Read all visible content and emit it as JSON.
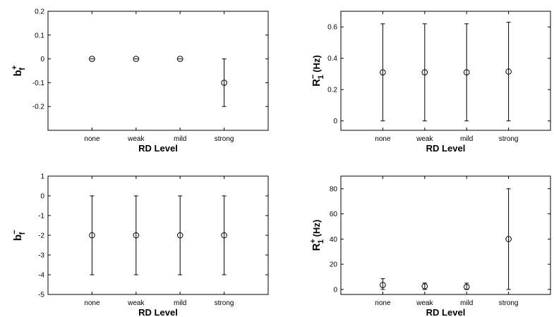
{
  "chart_data": [
    {
      "type": "scatter",
      "title": "",
      "xlabel": "RD Level",
      "ylabel": {
        "base": "b",
        "sup": "+",
        "sub": "f",
        "unit": ""
      },
      "categories": [
        "none",
        "weak",
        "mild",
        "strong"
      ],
      "series": [
        {
          "values": [
            0,
            0,
            0,
            -0.1
          ],
          "err_low": [
            0,
            0,
            0,
            -0.2
          ],
          "err_high": [
            0,
            0,
            0,
            0
          ]
        }
      ],
      "xlim": [
        0,
        5
      ],
      "ylim": [
        -0.3,
        0.2
      ],
      "yticks": [
        0.2,
        0.1,
        0,
        -0.1,
        -0.2
      ],
      "ytick_labels": [
        "0.2",
        "0.1",
        "0",
        "-0.1",
        "-0.2"
      ]
    },
    {
      "type": "scatter",
      "title": "",
      "xlabel": "RD Level",
      "ylabel": {
        "base": "R",
        "sup": "−",
        "sub": "1",
        "unit": " (Hz)"
      },
      "categories": [
        "none",
        "weak",
        "mild",
        "strong"
      ],
      "series": [
        {
          "values": [
            0.31,
            0.31,
            0.31,
            0.315
          ],
          "err_low": [
            0,
            0,
            0,
            0
          ],
          "err_high": [
            0.62,
            0.62,
            0.62,
            0.63
          ]
        }
      ],
      "xlim": [
        0,
        5
      ],
      "ylim": [
        -0.06,
        0.7
      ],
      "yticks": [
        0.6,
        0.4,
        0.2,
        0
      ],
      "ytick_labels": [
        "0.6",
        "0.4",
        "0.2",
        "0"
      ]
    },
    {
      "type": "scatter",
      "title": "",
      "xlabel": "RD Level",
      "ylabel": {
        "base": "b",
        "sup": "−",
        "sub": "f",
        "unit": ""
      },
      "categories": [
        "none",
        "weak",
        "mild",
        "strong"
      ],
      "series": [
        {
          "values": [
            -2,
            -2,
            -2,
            -2
          ],
          "err_low": [
            -4,
            -4,
            -4,
            -4
          ],
          "err_high": [
            0,
            0,
            0,
            0
          ]
        }
      ],
      "xlim": [
        0,
        5
      ],
      "ylim": [
        -5,
        1
      ],
      "yticks": [
        1,
        0,
        -1,
        -2,
        -3,
        -4,
        -5
      ],
      "ytick_labels": [
        "1",
        "0",
        "-1",
        "-2",
        "-3",
        "-4",
        "-5"
      ]
    },
    {
      "type": "scatter",
      "title": "",
      "xlabel": "RD Level",
      "ylabel": {
        "base": "R",
        "sup": "+",
        "sub": "1",
        "unit": " (Hz)"
      },
      "categories": [
        "none",
        "weak",
        "mild",
        "strong"
      ],
      "series": [
        {
          "values": [
            3.5,
            2.5,
            2,
            40
          ],
          "err_low": [
            0,
            0,
            0,
            0
          ],
          "err_high": [
            8.5,
            5,
            5,
            80
          ]
        }
      ],
      "xlim": [
        0,
        5
      ],
      "ylim": [
        -4,
        90
      ],
      "yticks": [
        80,
        60,
        40,
        20,
        0
      ],
      "ytick_labels": [
        "80",
        "60",
        "40",
        "20",
        "0"
      ]
    }
  ]
}
